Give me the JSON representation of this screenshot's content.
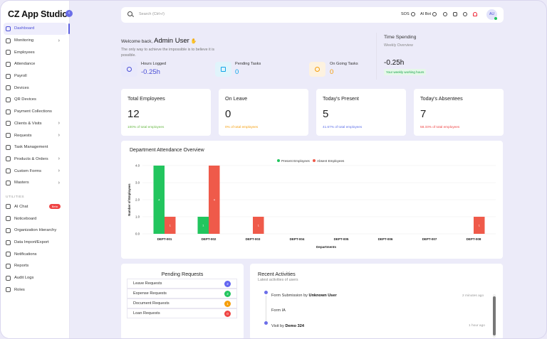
{
  "app": {
    "title": "CZ App Studio"
  },
  "sidebar": {
    "items": [
      {
        "label": "Dashboard",
        "active": true,
        "chevron": false
      },
      {
        "label": "Monitoring",
        "chevron": true
      },
      {
        "label": "Employees",
        "chevron": false
      },
      {
        "label": "Attendance",
        "chevron": false
      },
      {
        "label": "Payroll",
        "chevron": false
      },
      {
        "label": "Devices",
        "chevron": false
      },
      {
        "label": "QR Devices",
        "chevron": false
      },
      {
        "label": "Payment Collections",
        "chevron": false
      },
      {
        "label": "Clients & Visits",
        "chevron": true
      },
      {
        "label": "Requests",
        "chevron": true
      },
      {
        "label": "Task Management",
        "chevron": false
      },
      {
        "label": "Products & Orders",
        "chevron": true
      },
      {
        "label": "Custom Forms",
        "chevron": true
      },
      {
        "label": "Masters",
        "chevron": true
      }
    ],
    "utilities_label": "UTILITIES",
    "utilities": [
      {
        "label": "AI Chat",
        "badge": "Beta"
      },
      {
        "label": "Noticeboard"
      },
      {
        "label": "Organization Hierarchy"
      },
      {
        "label": "Data Import/Export"
      },
      {
        "label": "Notifications"
      },
      {
        "label": "Reports"
      },
      {
        "label": "Audit Logs"
      },
      {
        "label": "Roles"
      }
    ]
  },
  "topbar": {
    "search_placeholder": "Search (Ctrl+/)",
    "sos": "SOS",
    "ai_bot": "AI Bot",
    "avatar": "AU"
  },
  "welcome": {
    "greeting": "Welcome back,",
    "name": "Admin User",
    "quote": "The only way to achieve the impossible is to believe it is possible.",
    "metrics": [
      {
        "label": "Hours Logged",
        "value": "-0.25h",
        "color": "#4b4fd6"
      },
      {
        "label": "Pending Tasks",
        "value": "0",
        "color": "#0ea5e9"
      },
      {
        "label": "On Going Tasks",
        "value": "0",
        "color": "#f59e0b"
      }
    ],
    "time_spending": {
      "title": "Time Spending",
      "subtitle": "Weekly Overview",
      "value": "-0.25h",
      "badge": "Your weekly working hours"
    }
  },
  "stats": [
    {
      "label": "Total Employees",
      "value": "12",
      "sub": "100% of total employees",
      "color": "#65b741"
    },
    {
      "label": "On Leave",
      "value": "0",
      "sub": "0% of total employees",
      "color": "#f59e0b"
    },
    {
      "label": "Today's Present",
      "value": "5",
      "sub": "41.67% of total employees",
      "color": "#5b6ee8"
    },
    {
      "label": "Today's Absentees",
      "value": "7",
      "sub": "58.33% of total employees",
      "color": "#ef4444"
    }
  ],
  "chart_data": {
    "type": "bar",
    "title": "Department Attendance Overview",
    "xlabel": "Departments",
    "ylabel": "Number of Employees",
    "categories": [
      "DEPT-001",
      "DEPT-002",
      "DEPT-003",
      "DEPT-004",
      "DEPT-005",
      "DEPT-006",
      "DEPT-007",
      "DEPT-008"
    ],
    "series": [
      {
        "name": "Present Employees",
        "color": "#22c55e",
        "values": [
          4,
          1,
          0,
          0,
          0,
          0,
          0,
          0
        ]
      },
      {
        "name": "Absent Employees",
        "color": "#ef5a4a",
        "values": [
          1,
          4,
          1,
          0,
          0,
          0,
          0,
          1
        ]
      }
    ],
    "yticks": [
      "0.0",
      "1.0",
      "2.0",
      "3.0",
      "4.0"
    ],
    "ylim": [
      0,
      4
    ],
    "grid": true,
    "legend": "top-center"
  },
  "pending_requests": {
    "title": "Pending Requests",
    "items": [
      {
        "label": "Leave Requests",
        "count": "2",
        "color": "#6366f1"
      },
      {
        "label": "Expense Requests",
        "count": "2",
        "color": "#22c55e"
      },
      {
        "label": "Document Requests",
        "count": "1",
        "color": "#f59e0b"
      },
      {
        "label": "Loan Requests",
        "count": "0",
        "color": "#ef4444"
      }
    ]
  },
  "recent_activities": {
    "title": "Recent Activities",
    "subtitle": "Latest activities of users",
    "items": [
      {
        "text": "Form Submission by",
        "user": "Unknown User",
        "detail": "Form IA",
        "time": "2 minutes ago"
      },
      {
        "text": "Visit by",
        "user": "Demo 324",
        "detail": "",
        "time": "1 hour ago"
      }
    ]
  }
}
